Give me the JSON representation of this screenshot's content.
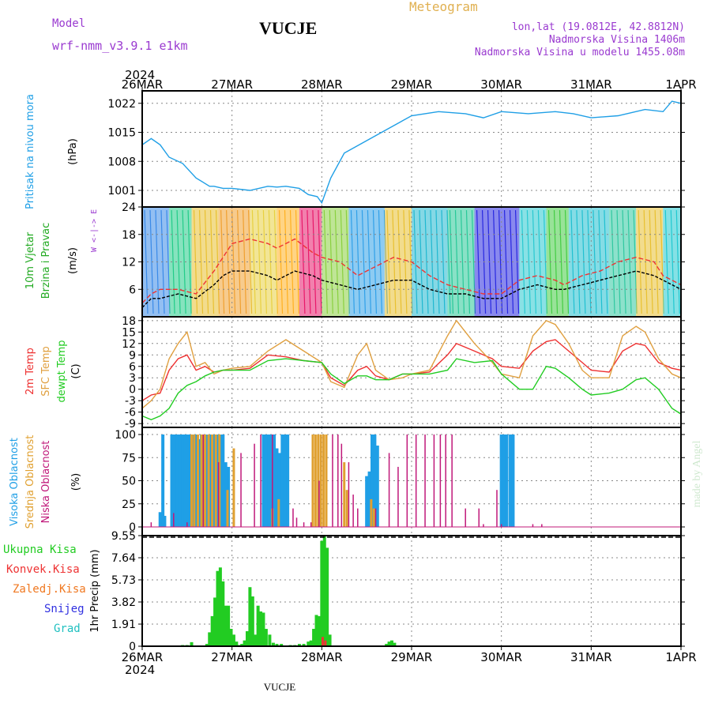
{
  "header": {
    "model_label": "Model",
    "model_name": "wrf-nmm_v3.9.1  e1km",
    "station_title": "VUCJE",
    "meteogram_label": "Meteogram",
    "lonlat": "lon,lat (19.0812E, 42.8812N)",
    "altitude": "Nadmorska Visina 1406m",
    "model_altitude": "Nadmorska Visina u modelu 1455.08m",
    "year_top": "2024",
    "year_bottom": "2024",
    "footer_station": "VUCJE",
    "credit": "made by Angel"
  },
  "colors": {
    "pressure": "#1f9fe6",
    "cloud_high": "#1f9fe6",
    "cloud_mid": "#e0a030",
    "cloud_low": "#c0187a",
    "temp2m": "#ee3030",
    "sfc_temp": "#e0a040",
    "dewpoint": "#22cc22",
    "precip_total": "#22cc22",
    "precip_conv": "#ee3333",
    "freezing_rain": "#f07820",
    "snow": "#3030e0",
    "hail": "#20c0c0",
    "wind_title": "#22aa22",
    "wind_compass": "#9a3ad0",
    "header_purple": "#9a3ad0",
    "meteogram_orange": "#e0b050"
  },
  "chart_data": [
    {
      "type": "line",
      "title": "Pritisak na nivou mora",
      "ylabel": "(hPa)",
      "x_ticks": [
        "26MAR",
        "27MAR",
        "28MAR",
        "29MAR",
        "30MAR",
        "31MAR",
        "1APR"
      ],
      "y_ticks": [
        1001,
        1008,
        1015,
        1022
      ],
      "ylim": [
        997,
        1025
      ],
      "grid": true,
      "x_days": [
        0,
        0.1,
        0.2,
        0.3,
        0.45,
        0.6,
        0.75,
        0.8,
        0.9,
        1.0,
        1.2,
        1.4,
        1.5,
        1.6,
        1.75,
        1.85,
        1.95,
        2.0,
        2.1,
        2.25,
        2.5,
        2.75,
        3.0,
        3.3,
        3.6,
        3.8,
        4.0,
        4.3,
        4.6,
        4.8,
        5.0,
        5.3,
        5.6,
        5.8,
        5.9,
        6.0
      ],
      "series": [
        {
          "values": [
            1012,
            1013.5,
            1012,
            1009,
            1007.5,
            1004,
            1002,
            1002,
            1001.5,
            1001.5,
            1001,
            1002,
            1001.8,
            1002,
            1001.5,
            1000,
            999.5,
            998,
            1004,
            1010,
            1013,
            1016,
            1019,
            1020,
            1019.5,
            1018.5,
            1020,
            1019.5,
            1020,
            1019.5,
            1018.5,
            1019,
            1020.5,
            1020,
            1022.5,
            1022
          ]
        }
      ]
    },
    {
      "type": "line",
      "title": "10m Vjetar Brzina i Pravac",
      "ylabel": "(m/s)",
      "y_ticks": [
        6,
        12,
        18,
        24
      ],
      "ylim": [
        0,
        24
      ],
      "grid": true,
      "compass": "W <-|-> E",
      "x_days": [
        0,
        0.1,
        0.2,
        0.4,
        0.6,
        0.8,
        0.9,
        1.0,
        1.2,
        1.4,
        1.5,
        1.7,
        1.9,
        2.0,
        2.2,
        2.4,
        2.6,
        2.8,
        3.0,
        3.2,
        3.4,
        3.6,
        3.8,
        4.0,
        4.2,
        4.4,
        4.6,
        4.7,
        4.9,
        5.1,
        5.3,
        5.5,
        5.7,
        5.8,
        6.0
      ],
      "series": [
        {
          "name": "gust",
          "values": [
            3,
            5,
            6,
            6,
            5,
            10,
            13,
            16,
            17,
            16,
            15,
            17,
            14,
            13,
            12,
            9,
            11,
            13,
            12,
            9,
            7,
            6,
            5,
            5,
            8,
            9,
            8,
            7,
            9,
            10,
            12,
            13,
            12,
            9,
            7
          ]
        },
        {
          "name": "speed",
          "values": [
            2,
            4,
            4,
            5,
            4,
            7,
            9,
            10,
            10,
            9,
            8,
            10,
            9,
            8,
            7,
            6,
            7,
            8,
            8,
            6,
            5,
            5,
            4,
            4,
            6,
            7,
            6,
            6,
            7,
            8,
            9,
            10,
            9,
            8,
            6
          ]
        }
      ],
      "wind_bands": [
        {
          "from": 0.0,
          "to": 0.3,
          "color": "#3a8ae8"
        },
        {
          "from": 0.3,
          "to": 0.55,
          "color": "#22cc88"
        },
        {
          "from": 0.55,
          "to": 0.85,
          "color": "#e8c030"
        },
        {
          "from": 0.85,
          "to": 1.2,
          "color": "#f0a030"
        },
        {
          "from": 1.2,
          "to": 1.5,
          "color": "#e8d040"
        },
        {
          "from": 1.5,
          "to": 1.75,
          "color": "#ffb020"
        },
        {
          "from": 1.75,
          "to": 2.0,
          "color": "#e8186a"
        },
        {
          "from": 2.0,
          "to": 2.3,
          "color": "#8ad040"
        },
        {
          "from": 2.3,
          "to": 2.7,
          "color": "#30a0e8"
        },
        {
          "from": 2.7,
          "to": 3.0,
          "color": "#e8c030"
        },
        {
          "from": 3.0,
          "to": 3.4,
          "color": "#20b8d0"
        },
        {
          "from": 3.4,
          "to": 3.7,
          "color": "#28c898"
        },
        {
          "from": 3.7,
          "to": 4.2,
          "color": "#2828e0"
        },
        {
          "from": 4.2,
          "to": 4.5,
          "color": "#28c8d0"
        },
        {
          "from": 4.5,
          "to": 4.75,
          "color": "#44cc44"
        },
        {
          "from": 4.75,
          "to": 5.2,
          "color": "#20c0d0"
        },
        {
          "from": 5.2,
          "to": 5.5,
          "color": "#30c8a0"
        },
        {
          "from": 5.5,
          "to": 5.8,
          "color": "#e8c030"
        },
        {
          "from": 5.8,
          "to": 6.0,
          "color": "#20c8d0"
        }
      ]
    },
    {
      "type": "line",
      "title": "2m Temp / SFC Temp / dewpt Temp",
      "ylabel": "(C)",
      "y_ticks": [
        -9,
        -6,
        -3,
        0,
        3,
        6,
        9,
        12,
        15,
        18
      ],
      "ylim": [
        -10,
        19
      ],
      "grid": true,
      "x_days": [
        0,
        0.1,
        0.2,
        0.3,
        0.4,
        0.5,
        0.6,
        0.7,
        0.8,
        0.9,
        1.0,
        1.2,
        1.4,
        1.6,
        1.8,
        2.0,
        2.1,
        2.25,
        2.4,
        2.5,
        2.6,
        2.75,
        2.9,
        3.0,
        3.2,
        3.4,
        3.5,
        3.7,
        3.9,
        4.0,
        4.2,
        4.35,
        4.5,
        4.6,
        4.75,
        4.9,
        5.0,
        5.2,
        5.35,
        5.5,
        5.6,
        5.75,
        5.9,
        6.0
      ],
      "series": [
        {
          "name": "2m Temp",
          "values": [
            -3,
            -1.5,
            -1,
            5,
            8,
            9,
            5,
            6,
            4.5,
            5,
            5,
            5.5,
            9,
            8.5,
            7.5,
            7,
            3,
            1,
            5,
            6,
            3.5,
            2.5,
            4,
            4,
            4.5,
            9,
            12,
            10,
            8,
            6,
            5.5,
            10,
            12.5,
            13,
            10,
            7,
            5,
            4.5,
            10,
            12,
            11.5,
            7,
            5.5,
            5
          ]
        },
        {
          "name": "SFC Temp",
          "values": [
            -5,
            -3,
            0,
            8,
            12,
            15,
            6,
            7,
            4,
            5,
            5.5,
            6,
            10,
            13,
            10,
            7,
            2,
            0.5,
            9,
            12,
            5,
            2.5,
            3,
            4,
            5,
            14,
            18,
            12,
            7,
            4,
            3,
            14,
            18,
            17,
            12,
            5,
            3,
            3,
            14,
            16.5,
            15,
            8,
            4,
            3
          ]
        },
        {
          "name": "dewpt Temp",
          "values": [
            -7,
            -8,
            -7,
            -5,
            -1,
            1,
            2,
            3.5,
            4.5,
            5,
            5,
            5,
            7.5,
            8,
            7.5,
            7,
            4,
            1.5,
            3.5,
            3.5,
            2.5,
            2.5,
            4,
            4,
            4,
            5,
            8,
            7,
            7.5,
            4,
            0,
            0,
            6,
            5.5,
            3,
            0,
            -1.5,
            -1,
            0,
            2.5,
            3,
            0,
            -5,
            -6.5
          ]
        }
      ]
    },
    {
      "type": "bar",
      "title": "Visoka Oblacnost / Srednja Oblacnost / Niska Oblacnost",
      "ylabel": "(%)",
      "y_ticks": [
        0,
        25,
        50,
        75,
        100
      ],
      "ylim": [
        0,
        100
      ],
      "grid": true,
      "series": [
        {
          "name": "Visoka Oblacnost",
          "x_days": [
            0.2,
            0.23,
            0.25,
            0.33,
            0.36,
            0.39,
            0.42,
            0.45,
            0.48,
            0.51,
            0.54,
            0.57,
            0.6,
            0.63,
            0.66,
            0.69,
            0.72,
            0.75,
            0.78,
            0.81,
            0.84,
            0.87,
            0.9,
            0.93,
            0.96,
            1.35,
            1.38,
            1.41,
            1.44,
            1.47,
            1.5,
            1.53,
            1.56,
            1.59,
            1.62,
            2.5,
            2.53,
            2.56,
            2.59,
            2.62,
            3.5,
            4.0,
            4.03,
            4.06,
            4.1,
            4.13
          ],
          "values": [
            16,
            100,
            12,
            100,
            100,
            100,
            100,
            100,
            100,
            100,
            100,
            100,
            100,
            95,
            100,
            100,
            100,
            100,
            100,
            100,
            100,
            100,
            100,
            70,
            65,
            100,
            100,
            100,
            100,
            100,
            85,
            80,
            100,
            100,
            100,
            55,
            60,
            100,
            100,
            88,
            0,
            100,
            100,
            100,
            100,
            100
          ]
        },
        {
          "name": "Srednja Oblacnost",
          "x_days": [
            0.55,
            0.58,
            0.62,
            0.66,
            0.7,
            0.74,
            0.78,
            0.82,
            0.86,
            0.95,
            1.02,
            1.45,
            1.52,
            1.9,
            1.93,
            1.96,
            1.99,
            2.02,
            2.05,
            2.25,
            2.28,
            2.55,
            2.58
          ],
          "values": [
            100,
            100,
            100,
            100,
            100,
            100,
            100,
            100,
            100,
            40,
            85,
            20,
            30,
            100,
            100,
            100,
            100,
            100,
            100,
            70,
            40,
            30,
            20
          ]
        },
        {
          "name": "Niska Oblacnost",
          "x_days": [
            0.1,
            0.35,
            0.5,
            0.68,
            0.85,
            1.1,
            1.25,
            1.32,
            1.45,
            1.68,
            1.72,
            1.8,
            1.88,
            1.97,
            2.12,
            2.18,
            2.22,
            2.3,
            2.35,
            2.4,
            2.6,
            2.75,
            2.85,
            2.95,
            3.05,
            3.15,
            3.25,
            3.32,
            3.38,
            3.45,
            3.6,
            3.75,
            3.8,
            3.95,
            4.0,
            4.35,
            4.45
          ],
          "values": [
            5,
            15,
            5,
            100,
            70,
            80,
            90,
            100,
            100,
            20,
            10,
            5,
            5,
            50,
            100,
            100,
            90,
            70,
            35,
            20,
            20,
            80,
            65,
            100,
            100,
            100,
            100,
            100,
            100,
            100,
            20,
            20,
            3,
            40,
            3,
            3,
            3
          ]
        }
      ]
    },
    {
      "type": "bar",
      "title": "Ukupna Kisa / Konvek.Kisa / Zaledj.Kisa / Snijeg / Grad",
      "ylabel": "1hr Precip (mm)",
      "y_ticks": [
        0,
        1.91,
        3.82,
        5.73,
        7.64,
        9.55
      ],
      "ylim": [
        0,
        9.55
      ],
      "x_ticks": [
        "26MAR",
        "27MAR",
        "28MAR",
        "29MAR",
        "30MAR",
        "31MAR",
        "1APR"
      ],
      "grid": true,
      "series": [
        {
          "name": "Ukupna Kisa",
          "x_days": [
            0.45,
            0.5,
            0.55,
            0.72,
            0.75,
            0.78,
            0.81,
            0.84,
            0.87,
            0.9,
            0.93,
            0.96,
            0.99,
            1.02,
            1.05,
            1.08,
            1.11,
            1.14,
            1.17,
            1.2,
            1.23,
            1.26,
            1.29,
            1.32,
            1.35,
            1.38,
            1.42,
            1.46,
            1.5,
            1.55,
            1.65,
            1.7,
            1.75,
            1.8,
            1.85,
            1.88,
            1.91,
            1.94,
            1.97,
            2.0,
            2.03,
            2.06,
            2.09,
            2.72,
            2.75,
            2.78,
            2.81
          ],
          "values": [
            0.1,
            0.1,
            0.35,
            0.2,
            1.2,
            2.6,
            4.2,
            6.5,
            6.8,
            5.6,
            3.5,
            3.5,
            1.5,
            1.0,
            0.4,
            0.1,
            0.2,
            0.5,
            1.3,
            5.1,
            4.3,
            1.0,
            3.5,
            3.0,
            2.9,
            1.5,
            1.0,
            0.3,
            0.2,
            0.2,
            0.1,
            0.1,
            0.2,
            0.2,
            0.4,
            0.5,
            1.5,
            2.7,
            2.6,
            9.1,
            9.5,
            8.5,
            1.0,
            0.2,
            0.4,
            0.5,
            0.3
          ]
        },
        {
          "name": "Konvek.Kisa",
          "x_days": [
            2.01,
            2.04
          ],
          "values": [
            0.8,
            0.5
          ]
        }
      ]
    }
  ],
  "panels": {
    "pressure_title": "Pritisak na nivou mora",
    "pressure_unit": "(hPa)",
    "wind_title1": "10m Vjetar",
    "wind_title2": "Brzina i Pravac",
    "wind_unit": "(m/s)",
    "wind_compass": "W <-|-> E",
    "temp_2m": "2m Temp",
    "temp_sfc": "SFC Temp",
    "temp_dew": "dewpt Temp",
    "temp_unit": "(C)",
    "cloud_high": "Visoka Oblacnost",
    "cloud_mid": "Srednja Oblacnost",
    "cloud_low": "Niska Oblacnost",
    "cloud_unit": "(%)",
    "rain_total": "Ukupna Kisa",
    "rain_conv": "Konvek.Kisa",
    "rain_freeze": "Zaledj.Kisa",
    "snow": "Snijeg",
    "hail": "Grad",
    "precip_unit": "1hr Precip (mm)"
  }
}
